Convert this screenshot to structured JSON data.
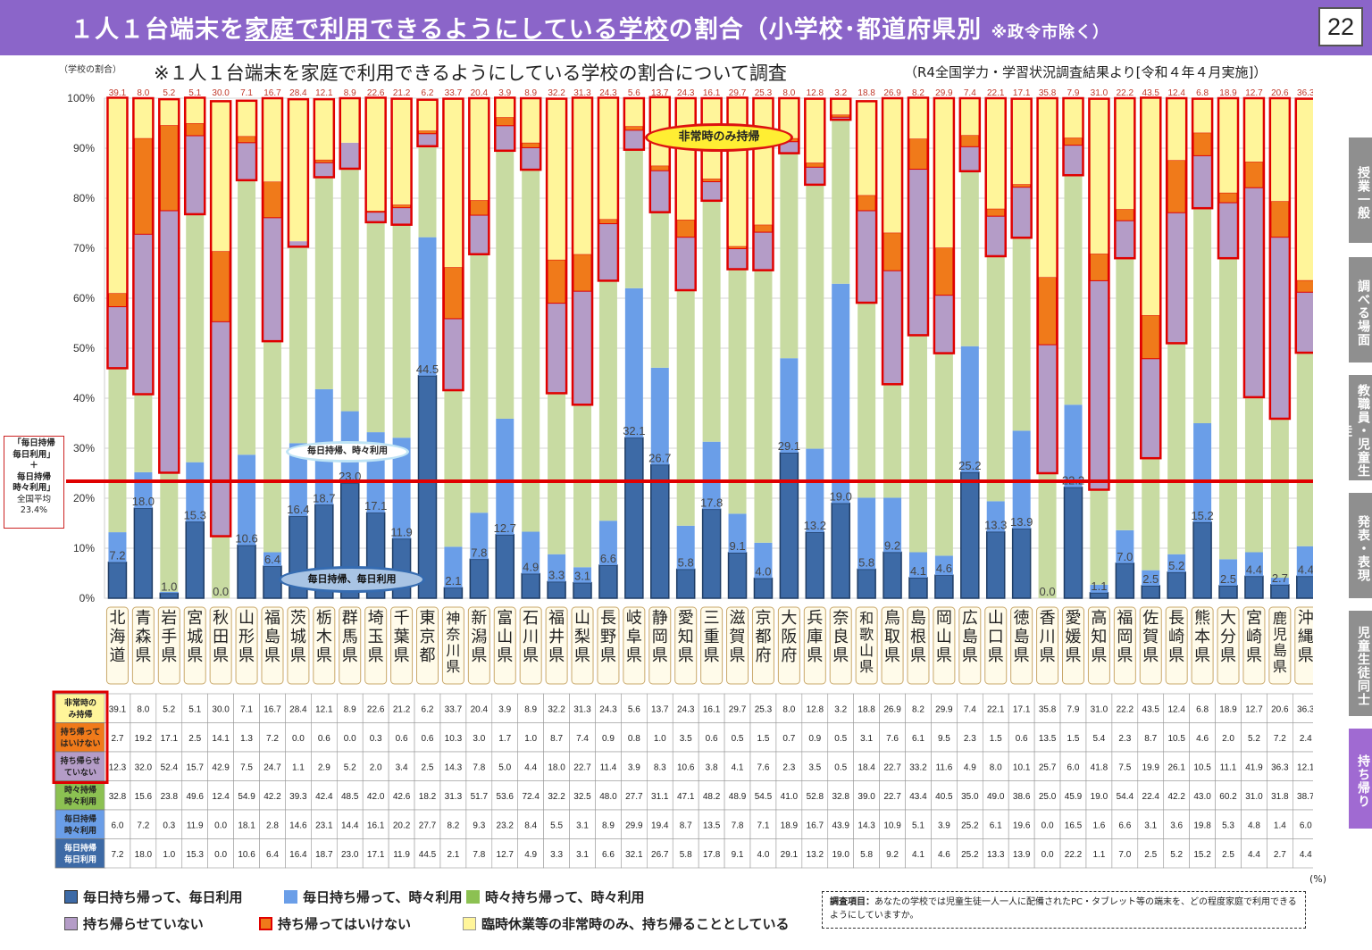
{
  "header": {
    "title_pre": "１人１台端末を",
    "title_highlight": "家庭で利用できるようにしている学校",
    "title_post": "の割合（小学校･都道府県別",
    "title_note": "※政令市除く）",
    "page_number": "22"
  },
  "subtitle": "※１人１台端末を家庭で利用できるようにしている学校の割合について調査",
  "subtitle_source": "（R4全国学力・学習状況調査結果より[令和４年４月実施]）",
  "y_axis_title": "（学校の割合）",
  "average_box": {
    "line1": "「毎日持帰",
    "line2": "毎日利用」",
    "line3": "＋",
    "line4": "毎日持帰",
    "line5": "時々利用」",
    "line6": "全国平均",
    "value": "23.4%"
  },
  "callouts": {
    "emergency": "非常時のみ持帰",
    "daily_sometimes": "毎日持帰、時々利用",
    "daily_daily": "毎日持帰、毎日利用"
  },
  "side_tabs": [
    "授業一般",
    "調べる場面",
    "教職員・児童生徒",
    "発表・表現",
    "児童生徒同士",
    "持ち帰り"
  ],
  "legend": [
    {
      "label": "毎日持ち帰って、毎日利用",
      "color": "#3d6aa6"
    },
    {
      "label": "毎日持ち帰って、時々利用",
      "color": "#6a9ee8"
    },
    {
      "label": "時々持ち帰って、時々利用",
      "color": "#8cc152"
    },
    {
      "label": "持ち帰らせていない",
      "color": "#b49cc7"
    },
    {
      "label": "持ち帰ってはいけない",
      "color": "#f07a1a"
    },
    {
      "label": "臨時休業等の非常時のみ、持ち帰ることとしている",
      "color": "#fff59a"
    }
  ],
  "percent_unit": "(%)",
  "survey": {
    "title": "調査項目：",
    "text": "あなたの学校では児童生徒一人一人に配備されたPC・タブレット等の端末を、どの程度家庭で利用できるようにしていますか。"
  },
  "table_row_labels": [
    "非常時のみ持帰",
    "持ち帰ってはいけない",
    "持ち帰らせていない",
    "時々持帰時々利用",
    "毎日持帰時々利用",
    "毎日持帰毎日利用"
  ],
  "chart_data": {
    "type": "bar",
    "stacked": true,
    "ylim": [
      0,
      100
    ],
    "y_ticks": [
      "0%",
      "10%",
      "20%",
      "30%",
      "40%",
      "50%",
      "60%",
      "70%",
      "80%",
      "90%",
      "100%"
    ],
    "national_average": 23.4,
    "categories": [
      "北海道",
      "青森県",
      "岩手県",
      "宮城県",
      "秋田県",
      "山形県",
      "福島県",
      "茨城県",
      "栃木県",
      "群馬県",
      "埼玉県",
      "千葉県",
      "東京都",
      "神奈川県",
      "新潟県",
      "富山県",
      "石川県",
      "福井県",
      "山梨県",
      "長野県",
      "岐阜県",
      "静岡県",
      "愛知県",
      "三重県",
      "滋賀県",
      "京都府",
      "大阪府",
      "兵庫県",
      "奈良県",
      "和歌山県",
      "鳥取県",
      "島根県",
      "岡山県",
      "広島県",
      "山口県",
      "徳島県",
      "香川県",
      "愛媛県",
      "高知県",
      "福岡県",
      "佐賀県",
      "長崎県",
      "熊本県",
      "大分県",
      "宮崎県",
      "鹿児島県",
      "沖縄県"
    ],
    "series": [
      {
        "name": "毎日持ち帰って、毎日利用",
        "color": "#3d6aa6",
        "values": [
          7.2,
          18.0,
          1.0,
          15.3,
          0.0,
          10.6,
          6.4,
          16.4,
          18.7,
          23.0,
          17.1,
          11.9,
          44.5,
          2.1,
          7.8,
          12.7,
          4.9,
          3.3,
          3.1,
          6.6,
          32.1,
          26.7,
          5.8,
          17.8,
          9.1,
          4.0,
          29.1,
          13.2,
          19.0,
          5.8,
          9.2,
          4.1,
          4.6,
          25.2,
          13.3,
          13.9,
          0.0,
          22.2,
          1.1,
          7.0,
          2.5,
          5.2,
          15.2,
          2.5,
          4.4,
          2.7,
          4.4
        ]
      },
      {
        "name": "毎日持ち帰って、時々利用",
        "color": "#6a9ee8",
        "values": [
          6.0,
          7.2,
          0.3,
          11.9,
          0.0,
          18.1,
          2.8,
          14.6,
          23.1,
          14.4,
          16.1,
          20.2,
          27.7,
          8.2,
          9.3,
          23.2,
          8.4,
          5.5,
          3.1,
          8.9,
          29.9,
          19.4,
          8.7,
          13.5,
          7.8,
          7.1,
          18.9,
          16.7,
          43.9,
          14.3,
          10.9,
          5.1,
          3.9,
          25.2,
          6.1,
          19.6,
          0.0,
          16.5,
          1.6,
          6.6,
          3.1,
          3.6,
          19.8,
          5.3,
          4.8,
          1.4,
          6.0
        ]
      },
      {
        "name": "時々持ち帰って、時々利用",
        "color": "#c8dba2",
        "values": [
          32.8,
          15.6,
          23.8,
          49.6,
          12.4,
          54.9,
          42.2,
          39.3,
          42.4,
          48.5,
          42.0,
          42.6,
          18.2,
          31.3,
          51.7,
          53.6,
          72.4,
          32.2,
          32.5,
          48.0,
          27.7,
          31.1,
          47.1,
          48.2,
          48.9,
          54.5,
          41.0,
          52.8,
          32.8,
          39.0,
          22.7,
          43.4,
          40.5,
          35.0,
          49.0,
          38.6,
          25.0,
          45.9,
          19.0,
          54.4,
          22.4,
          42.2,
          43.0,
          60.2,
          31.0,
          31.8,
          38.7
        ]
      },
      {
        "name": "持ち帰らせていない",
        "color": "#b49cc7",
        "values": [
          12.3,
          32.0,
          52.4,
          15.7,
          42.9,
          7.5,
          24.7,
          1.1,
          2.9,
          5.2,
          2.0,
          3.4,
          2.5,
          14.3,
          7.8,
          5.0,
          4.4,
          18.0,
          22.7,
          11.4,
          3.9,
          8.3,
          10.6,
          3.8,
          4.1,
          7.6,
          2.3,
          3.5,
          0.5,
          18.4,
          22.7,
          33.2,
          11.6,
          4.9,
          8.0,
          10.1,
          25.7,
          6.0,
          41.8,
          7.5,
          19.9,
          26.1,
          10.5,
          11.1,
          41.9,
          36.3,
          12.1
        ]
      },
      {
        "name": "持ち帰ってはいけない",
        "color": "#f07a1a",
        "values": [
          2.7,
          19.2,
          17.1,
          2.5,
          14.1,
          1.3,
          7.2,
          0.0,
          0.6,
          0.0,
          0.3,
          0.6,
          0.6,
          10.3,
          3.0,
          1.7,
          1.0,
          8.7,
          7.4,
          0.9,
          0.8,
          1.0,
          3.5,
          0.6,
          0.5,
          1.5,
          0.7,
          0.9,
          0.5,
          3.1,
          7.6,
          6.1,
          9.5,
          2.3,
          1.5,
          0.6,
          13.5,
          1.5,
          5.4,
          2.3,
          8.7,
          10.5,
          4.6,
          2.0,
          5.2,
          7.2,
          2.4
        ]
      },
      {
        "name": "臨時休業等の非常時のみ、持ち帰ることとしている",
        "color": "#fff59a",
        "values": [
          39.1,
          8.0,
          5.2,
          5.1,
          30.0,
          7.1,
          16.7,
          28.4,
          12.1,
          8.9,
          22.6,
          21.2,
          6.2,
          33.7,
          20.4,
          3.9,
          8.9,
          32.2,
          31.3,
          24.3,
          5.6,
          13.7,
          24.3,
          16.1,
          29.7,
          25.3,
          8.0,
          12.8,
          3.2,
          18.8,
          26.9,
          8.2,
          29.9,
          7.4,
          22.1,
          17.1,
          35.8,
          7.9,
          31.0,
          22.2,
          43.5,
          12.4,
          6.8,
          18.9,
          12.7,
          20.6,
          36.3
        ]
      }
    ]
  }
}
